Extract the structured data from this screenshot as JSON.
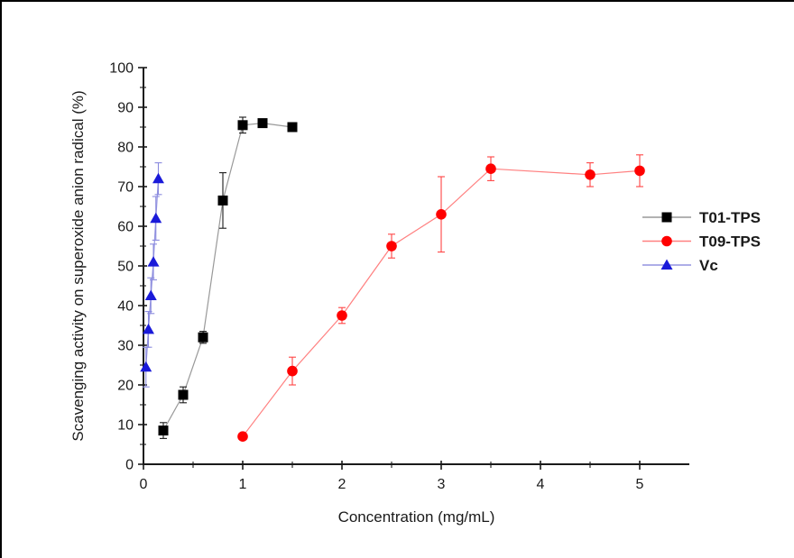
{
  "chart_data": {
    "type": "line",
    "title": "",
    "xlabel": "Concentration (mg/mL)",
    "ylabel": "Scavenging activity on superoxide anion radical (%)",
    "xlim": [
      0,
      5.5
    ],
    "ylim": [
      0,
      100
    ],
    "x_ticks": [
      0,
      1,
      2,
      3,
      4,
      5
    ],
    "x_minor_step": 0.5,
    "y_ticks": [
      0,
      10,
      20,
      30,
      40,
      50,
      60,
      70,
      80,
      90,
      100
    ],
    "y_minor_step": 5,
    "grid": false,
    "legend_position": "right-middle",
    "axis_color": "#1a1a1a",
    "series": [
      {
        "name": "T01-TPS",
        "marker": "square",
        "marker_color": "#000000",
        "line_color": "#999999",
        "error_color": "#1a1a1a",
        "x": [
          0.2,
          0.4,
          0.6,
          0.8,
          1.0,
          1.2,
          1.5
        ],
        "y": [
          8.5,
          17.5,
          32,
          66.5,
          85.5,
          86,
          85
        ],
        "yerr": [
          2,
          2,
          1.5,
          7,
          2,
          1,
          1
        ]
      },
      {
        "name": "T09-TPS",
        "marker": "circle",
        "marker_color": "#ff0000",
        "line_color": "#ff8080",
        "error_color": "#ff4444",
        "x": [
          1.0,
          1.5,
          2.0,
          2.5,
          3.0,
          3.5,
          4.5,
          5.0
        ],
        "y": [
          7,
          23.5,
          37.5,
          55,
          63,
          74.5,
          73,
          74
        ],
        "yerr": [
          0.8,
          3.5,
          2,
          3,
          9.5,
          3,
          3,
          4
        ]
      },
      {
        "name": "Vc",
        "marker": "triangle",
        "marker_color": "#1a1ad9",
        "line_color": "#9393e0",
        "error_color": "#8a8ade",
        "x": [
          0.025,
          0.05,
          0.075,
          0.1,
          0.125,
          0.15
        ],
        "y": [
          24.5,
          34,
          42.5,
          51,
          62,
          72
        ],
        "yerr": [
          5,
          4.5,
          4.5,
          4.5,
          5.5,
          4
        ]
      }
    ]
  }
}
